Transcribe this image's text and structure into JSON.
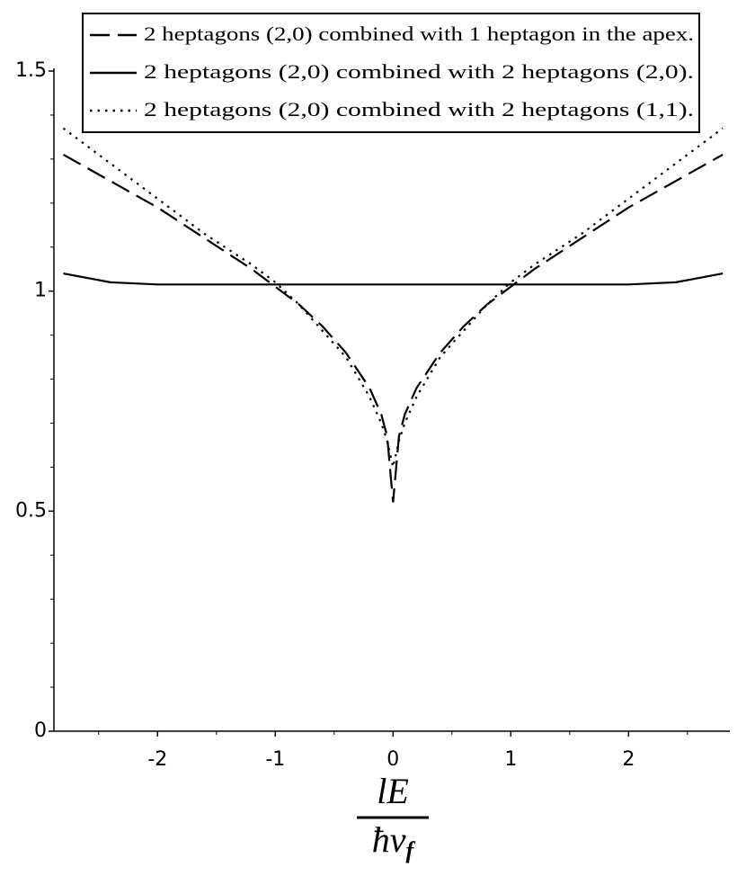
{
  "chart_data": {
    "type": "line",
    "x": [
      -2.8,
      -2.4,
      -2,
      -1.6,
      -1.2,
      -1,
      -0.8,
      -0.6,
      -0.4,
      -0.2,
      -0.1,
      -0.05,
      0,
      0.05,
      0.1,
      0.2,
      0.4,
      0.6,
      0.8,
      1,
      1.2,
      1.6,
      2,
      2.4,
      2.8
    ],
    "series": [
      {
        "name": "2 heptagons (2,0) combined with 1 heptagon in the apex.",
        "color": "#000000",
        "dash": "dashed",
        "values": [
          1.31,
          1.25,
          1.19,
          1.12,
          1.05,
          1.01,
          0.97,
          0.92,
          0.86,
          0.78,
          0.72,
          0.67,
          0.52,
          0.67,
          0.72,
          0.78,
          0.86,
          0.92,
          0.97,
          1.01,
          1.05,
          1.12,
          1.19,
          1.25,
          1.31
        ]
      },
      {
        "name": "2 heptagons (2,0) combined with 2 heptagons (2,0).",
        "color": "#000000",
        "dash": "solid",
        "values": [
          1.04,
          1.02,
          1.015,
          1.015,
          1.015,
          1.015,
          1.015,
          1.015,
          1.015,
          1.015,
          1.015,
          1.015,
          1.015,
          1.015,
          1.015,
          1.015,
          1.015,
          1.015,
          1.015,
          1.015,
          1.015,
          1.015,
          1.015,
          1.02,
          1.04
        ]
      },
      {
        "name": "2 heptagons (2,0) combined with 2 heptagons (1,1).",
        "color": "#000000",
        "dash": "dotted",
        "values": [
          1.37,
          1.29,
          1.21,
          1.13,
          1.06,
          1.02,
          0.97,
          0.91,
          0.85,
          0.76,
          0.7,
          0.66,
          0.6,
          0.66,
          0.7,
          0.76,
          0.85,
          0.91,
          0.97,
          1.02,
          1.06,
          1.13,
          1.21,
          1.29,
          1.37
        ]
      }
    ],
    "xlim": [
      -2.88,
      2.86
    ],
    "xticks": [
      -2,
      -1,
      0,
      1,
      2
    ],
    "xminorticks": [
      -2.5,
      -1.5,
      -0.5,
      0.5,
      1.5,
      2.5
    ],
    "ylim": [
      0,
      1.5
    ],
    "yticks": [
      0,
      0.5,
      1,
      1.5
    ],
    "yminorticks": [
      0.1,
      0.2,
      0.3,
      0.4,
      0.6,
      0.7,
      0.8,
      0.9,
      1.1,
      1.2,
      1.3,
      1.4
    ],
    "x_label_numerator": "lE",
    "x_label_denominator": "ħv",
    "x_label_denominator_subscript": "f",
    "legend": "top",
    "grid": false
  }
}
